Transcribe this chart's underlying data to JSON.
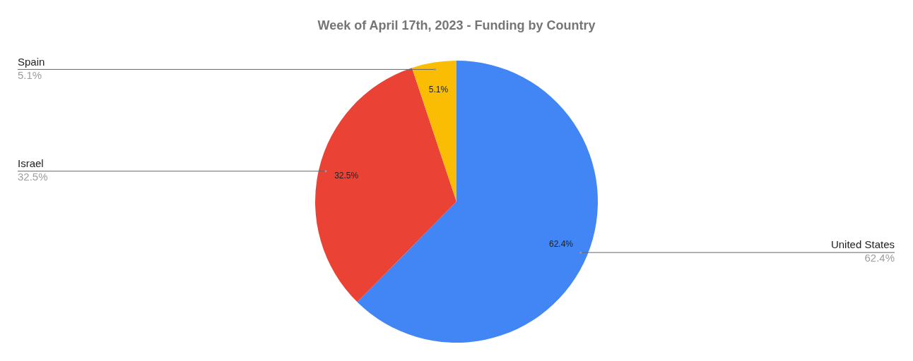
{
  "chart_data": {
    "type": "pie",
    "title": "Week of April 17th, 2023 - Funding by Country",
    "categories": [
      "United States",
      "Israel",
      "Spain"
    ],
    "values": [
      62.4,
      32.5,
      5.1
    ],
    "colors": [
      "#4285f4",
      "#ea4335",
      "#fbbc04"
    ],
    "value_labels": [
      "62.4%",
      "32.5%",
      "5.1%"
    ],
    "legend": false
  }
}
